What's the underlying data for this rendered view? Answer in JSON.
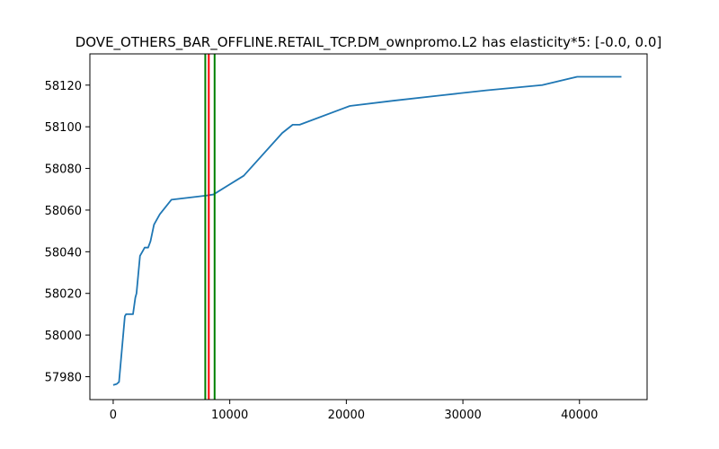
{
  "chart_data": {
    "type": "line",
    "title": "DOVE_OTHERS_BAR_OFFLINE.RETAIL_TCP.DM_ownpromo.L2 has elasticity*5:   [-0.0, 0.0]",
    "xlabel": "",
    "ylabel": "",
    "xlim": [
      -2000,
      45800
    ],
    "ylim": [
      57969,
      58135
    ],
    "grid": false,
    "x_ticks": [
      0,
      10000,
      20000,
      30000,
      40000
    ],
    "x_tick_labels": [
      "0",
      "10000",
      "20000",
      "30000",
      "40000"
    ],
    "y_ticks": [
      57980,
      58000,
      58020,
      58040,
      58060,
      58080,
      58100,
      58120
    ],
    "y_tick_labels": [
      "57980",
      "58000",
      "58020",
      "58040",
      "58060",
      "58080",
      "58100",
      "58120"
    ],
    "series": [
      {
        "color": "#1f77b4",
        "x": [
          0,
          300,
          500,
          1000,
          1100,
          1700,
          1800,
          1900,
          2000,
          2300,
          2600,
          2700,
          3000,
          3200,
          3500,
          3600,
          4000,
          5000,
          8000,
          8600,
          11200,
          14500,
          15400,
          16000,
          20300,
          24000,
          28000,
          32000,
          36800,
          39800,
          43600
        ],
        "y": [
          57976,
          57976.5,
          57977.5,
          58009,
          58010,
          58010,
          58014,
          58018,
          58020,
          58038,
          58041,
          58042,
          58042,
          58045,
          58053,
          58054,
          58058,
          58065,
          58067,
          58067.5,
          58076.5,
          58097,
          58101,
          58101,
          58110,
          58112.5,
          58115,
          58117.5,
          58120,
          58124,
          58124
        ]
      }
    ],
    "vertical_lines": [
      {
        "x": 7900,
        "color": "#008000"
      },
      {
        "x": 8200,
        "color": "#ff0000"
      },
      {
        "x": 8700,
        "color": "#008000"
      }
    ]
  }
}
